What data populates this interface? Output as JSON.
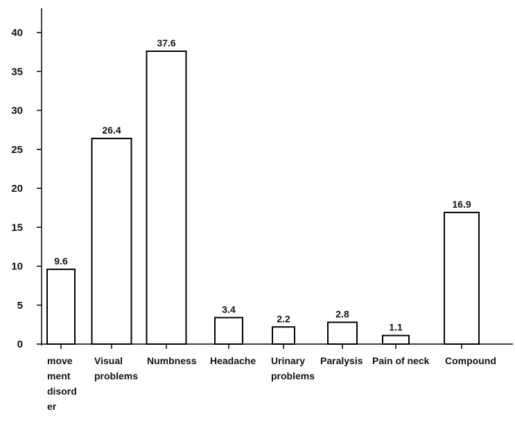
{
  "chart_data": {
    "type": "bar",
    "title": "",
    "xlabel": "",
    "ylabel": "",
    "ylim": [
      0,
      42
    ],
    "y_ticks": [
      0,
      5,
      10,
      15,
      20,
      25,
      30,
      35,
      40
    ],
    "categories": [
      [
        "move",
        "ment",
        "disord",
        "er"
      ],
      [
        "Visual",
        "problems"
      ],
      [
        "Numbness"
      ],
      [
        "Headache"
      ],
      [
        "Urinary",
        "problems"
      ],
      [
        "Paralysis"
      ],
      [
        "Pain of neck"
      ],
      [
        "Compound"
      ]
    ],
    "category_names": [
      "movement disorder",
      "Visual problems",
      "Numbness",
      "Headache",
      "Urinary problems",
      "Paralysis",
      "Pain of neck",
      "Compound"
    ],
    "values": [
      9.6,
      26.4,
      37.6,
      3.4,
      2.2,
      2.8,
      1.1,
      16.9
    ],
    "value_labels": [
      "9.6",
      "26.4",
      "37.6",
      "3.4",
      "2.2",
      "2.8",
      "1.1",
      "16.9"
    ],
    "bar_fill": "#ffffff",
    "bar_stroke": "#000000",
    "axis_color": "#000000",
    "grid": false,
    "legend": "none"
  }
}
